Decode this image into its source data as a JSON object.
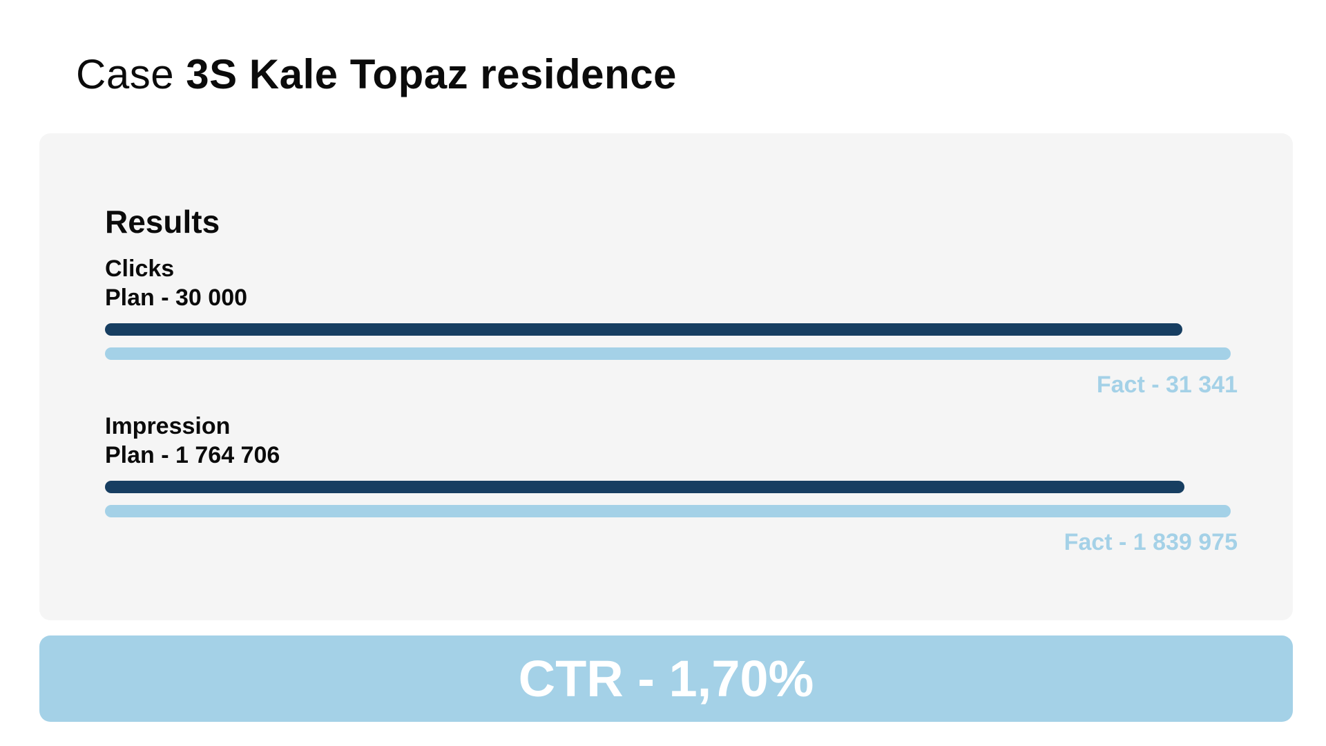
{
  "header": {
    "title_prefix": "Case ",
    "title_main": "3S Kale Topaz residence"
  },
  "results": {
    "heading": "Results"
  },
  "metrics": [
    {
      "name": "Clicks",
      "plan_label": "Plan - 30 000",
      "fact_label": "Fact - 31 341"
    },
    {
      "name": "Impression",
      "plan_label": "Plan - 1 764 706",
      "fact_label": "Fact - 1 839 975"
    }
  ],
  "ctr": {
    "label": "CTR - 1,70%"
  },
  "colors": {
    "plan": "#173e61",
    "fact": "#a4d1e7",
    "panel": "#f5f5f5"
  },
  "chart_data": [
    {
      "type": "bar",
      "orientation": "horizontal",
      "title": "Clicks",
      "categories": [
        "Plan",
        "Fact"
      ],
      "values": [
        30000,
        31341
      ]
    },
    {
      "type": "bar",
      "orientation": "horizontal",
      "title": "Impression",
      "categories": [
        "Plan",
        "Fact"
      ],
      "values": [
        1764706,
        1839975
      ]
    }
  ]
}
